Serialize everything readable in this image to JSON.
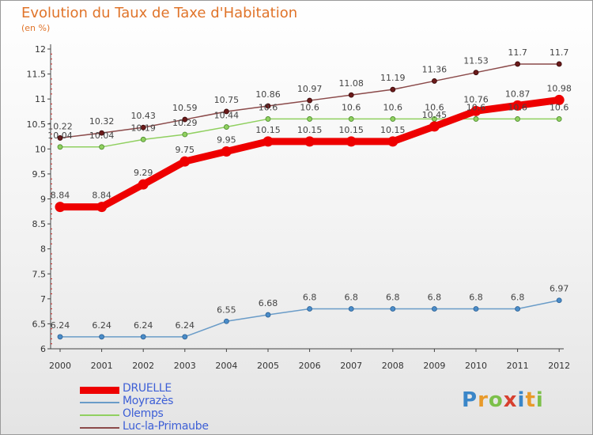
{
  "chart_data": {
    "type": "line",
    "title": "Evolution du Taux de Taxe d'Habitation",
    "unit_label": "(en %)",
    "xlabel": "",
    "ylabel": "",
    "x": [
      "2000",
      "2001",
      "2002",
      "2003",
      "2004",
      "2005",
      "2006",
      "2007",
      "2008",
      "2009",
      "2010",
      "2011",
      "2012"
    ],
    "ylim": [
      6,
      12
    ],
    "yticks": [
      "6",
      "6.5",
      "7",
      "7.5",
      "8",
      "8.5",
      "9",
      "9.5",
      "10",
      "10.5",
      "11",
      "11.5",
      "12"
    ],
    "series": [
      {
        "name": "DRUELLE",
        "color": "#ee0000",
        "values": [
          8.84,
          8.84,
          9.29,
          9.75,
          9.95,
          10.15,
          10.15,
          10.15,
          10.15,
          10.45,
          10.76,
          10.87,
          10.98
        ]
      },
      {
        "name": "Moyrazès",
        "color": "#6a9cc8",
        "values": [
          6.24,
          6.24,
          6.24,
          6.24,
          6.55,
          6.68,
          6.8,
          6.8,
          6.8,
          6.8,
          6.8,
          6.8,
          6.97
        ]
      },
      {
        "name": "Olemps",
        "color": "#90d060",
        "values": [
          10.04,
          10.04,
          10.19,
          10.29,
          10.44,
          10.6,
          10.6,
          10.6,
          10.6,
          10.6,
          10.6,
          10.6,
          10.6
        ]
      },
      {
        "name": "Luc-la-Primaube",
        "color": "#8b4a4a",
        "values": [
          10.22,
          10.32,
          10.43,
          10.59,
          10.75,
          10.86,
          10.97,
          11.08,
          11.19,
          11.36,
          11.53,
          11.7,
          11.7
        ]
      }
    ],
    "legend_position": "bottom-left"
  },
  "brand": {
    "letters": [
      "P",
      "r",
      "o",
      "x",
      "i",
      "t",
      "i"
    ],
    "colors": [
      "#3a86c8",
      "#e89a2a",
      "#7cc04a",
      "#d7402f",
      "#3a86c8",
      "#e89a2a",
      "#7cc04a"
    ]
  }
}
